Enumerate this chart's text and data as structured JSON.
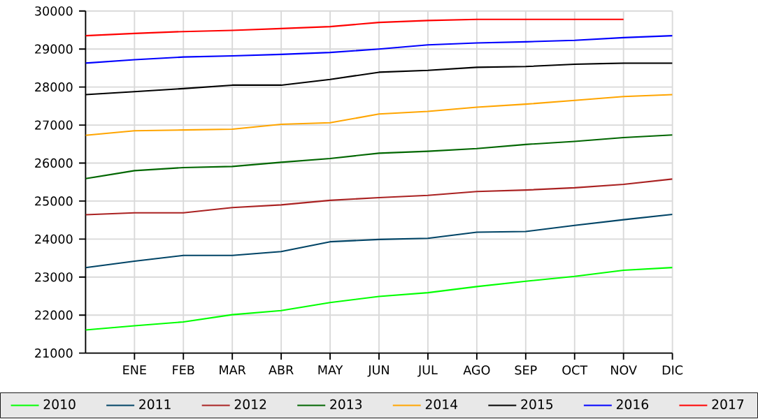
{
  "chart_data": {
    "type": "line",
    "categories": [
      null,
      "ENE",
      "FEB",
      "MAR",
      "ABR",
      "MAY",
      "JUN",
      "JUL",
      "AGO",
      "SEP",
      "OCT",
      "NOV",
      "DIC"
    ],
    "ylim": [
      21000,
      30000
    ],
    "yticks": [
      21000,
      22000,
      23000,
      24000,
      25000,
      26000,
      27000,
      28000,
      29000,
      30000
    ],
    "grid": true,
    "legend": "bottom",
    "series": [
      {
        "name": "2010",
        "color": "#00ff00",
        "values": [
          21610,
          21720,
          21820,
          22010,
          22120,
          22330,
          22490,
          22590,
          22750,
          22890,
          23020,
          23180,
          23250
        ]
      },
      {
        "name": "2011",
        "color": "#004466",
        "values": [
          23250,
          23420,
          23570,
          23570,
          23670,
          23930,
          23990,
          24020,
          24180,
          24200,
          24360,
          24510,
          24650
        ]
      },
      {
        "name": "2012",
        "color": "#aa2222",
        "values": [
          24640,
          24690,
          24690,
          24830,
          24900,
          25020,
          25090,
          25150,
          25250,
          25290,
          25350,
          25440,
          25580
        ]
      },
      {
        "name": "2013",
        "color": "#006600",
        "values": [
          25590,
          25800,
          25880,
          25910,
          26020,
          26120,
          26260,
          26310,
          26380,
          26490,
          26570,
          26670,
          26740
        ]
      },
      {
        "name": "2014",
        "color": "#ffa500",
        "values": [
          26730,
          26850,
          26870,
          26890,
          27020,
          27060,
          27290,
          27360,
          27470,
          27550,
          27650,
          27750,
          27800
        ]
      },
      {
        "name": "2015",
        "color": "#000000",
        "values": [
          27800,
          27880,
          27960,
          28050,
          28050,
          28200,
          28390,
          28440,
          28520,
          28540,
          28600,
          28630,
          28630
        ]
      },
      {
        "name": "2016",
        "color": "#0000ff",
        "values": [
          28630,
          28720,
          28790,
          28820,
          28860,
          28910,
          29000,
          29110,
          29160,
          29190,
          29230,
          29300,
          29350
        ]
      },
      {
        "name": "2017",
        "color": "#ff0000",
        "values": [
          29350,
          29410,
          29460,
          29490,
          29540,
          29590,
          29700,
          29750,
          29780,
          29780,
          29780,
          29780,
          null
        ]
      }
    ]
  }
}
